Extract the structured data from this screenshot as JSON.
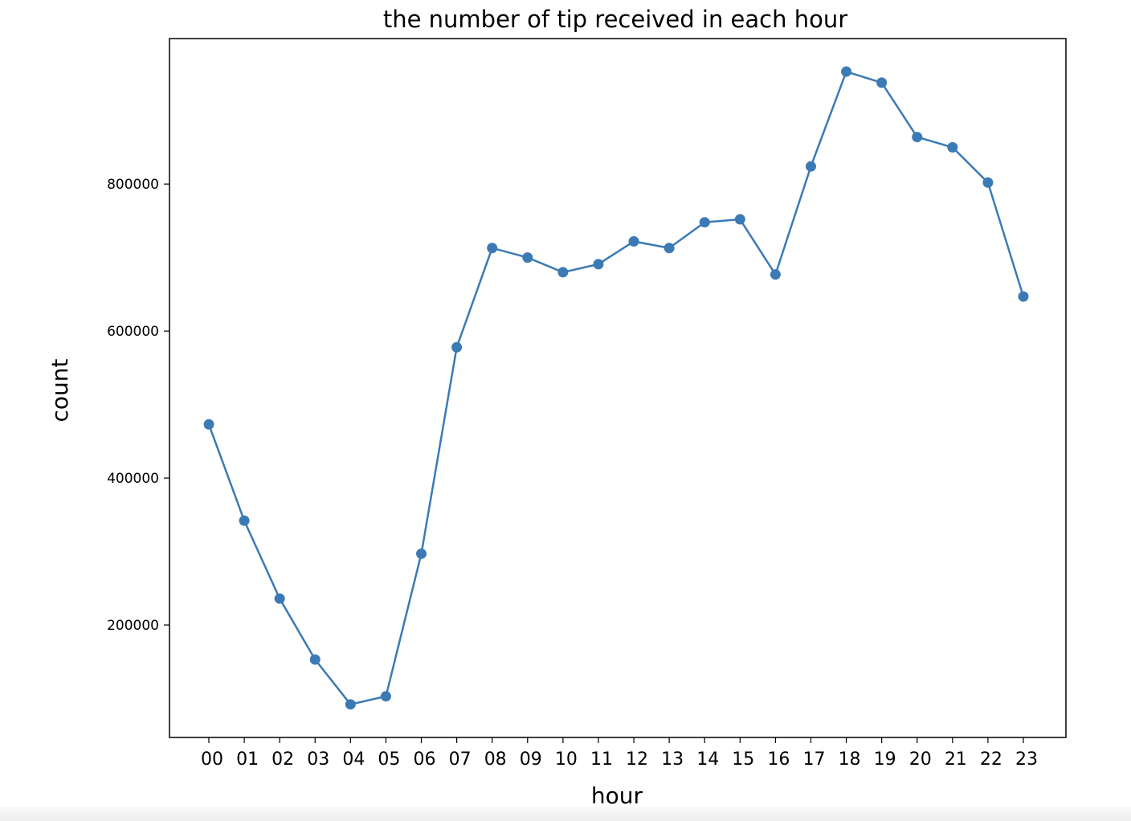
{
  "chart_data": {
    "type": "line",
    "title": "the number of tip received in each hour",
    "xlabel": "hour",
    "ylabel": "count",
    "categories": [
      "00",
      "01",
      "02",
      "03",
      "04",
      "05",
      "06",
      "07",
      "08",
      "09",
      "10",
      "11",
      "12",
      "13",
      "14",
      "15",
      "16",
      "17",
      "18",
      "19",
      "20",
      "21",
      "22",
      "23"
    ],
    "series": [
      {
        "values": [
          473000,
          342000,
          236000,
          153000,
          92000,
          103000,
          297000,
          578000,
          713000,
          700000,
          680000,
          691000,
          722000,
          713000,
          748000,
          752000,
          677000,
          824000,
          953000,
          938000,
          864000,
          850000,
          802000,
          647000
        ],
        "color": "#3b7ab5"
      }
    ],
    "yticks": [
      200000,
      400000,
      600000,
      800000
    ],
    "ytick_labels": [
      "200000",
      "400000",
      "600000",
      "800000"
    ],
    "ylim": [
      47000,
      998000
    ],
    "grid": false,
    "legend": false
  }
}
